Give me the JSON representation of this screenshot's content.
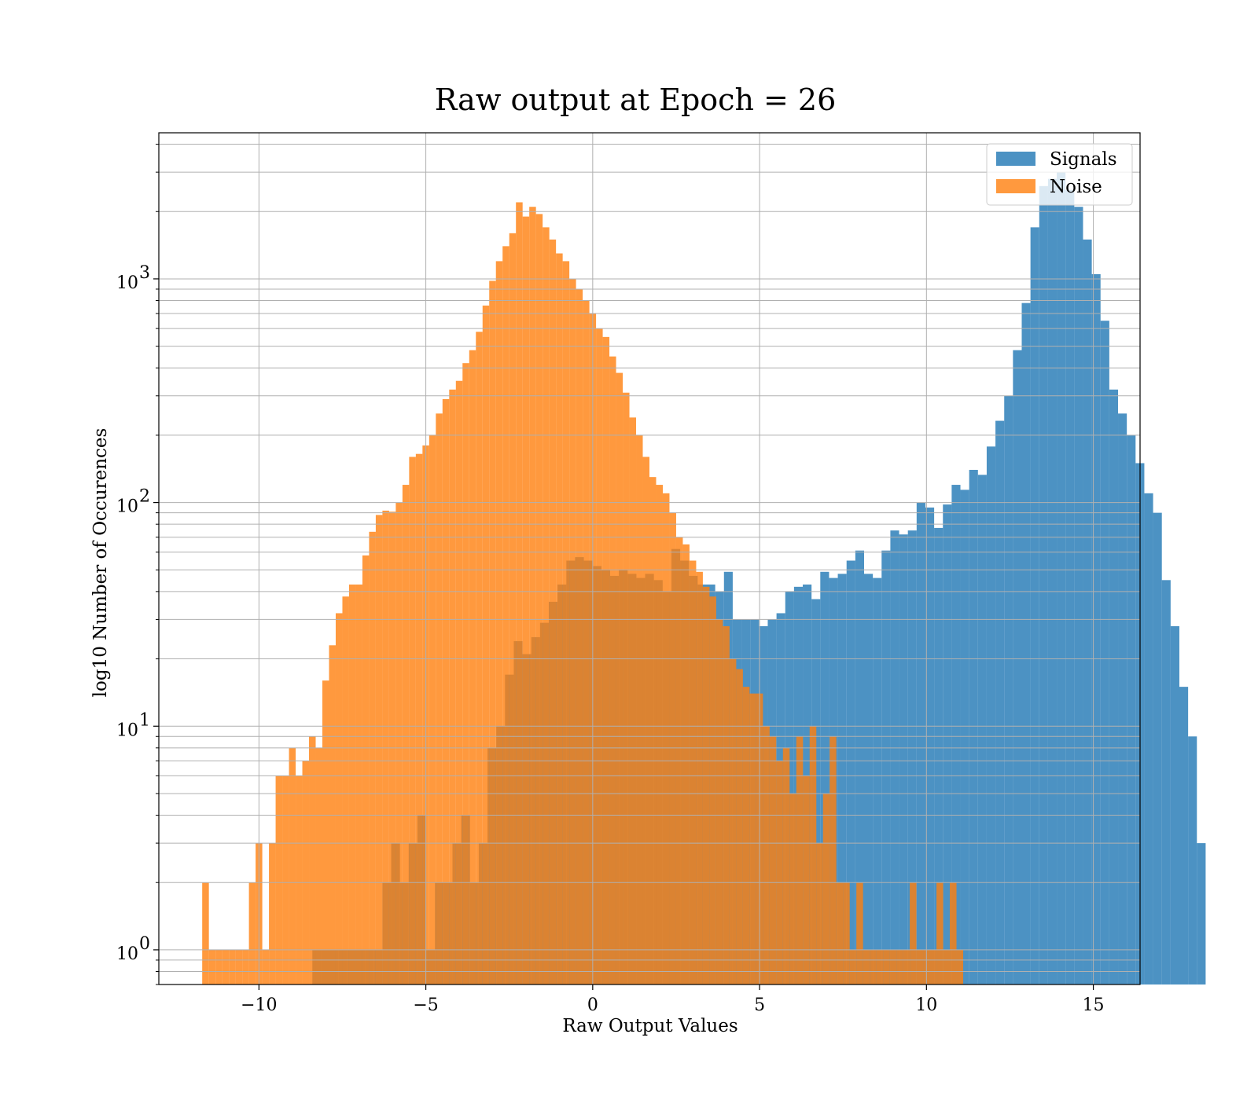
{
  "chart_data": {
    "type": "histogram",
    "title": "Raw output at Epoch = 26",
    "xlabel": "Raw Output Values",
    "ylabel": "log10 Number of Occurences",
    "xlim": [
      -13,
      16.4
    ],
    "ylim": [
      0.7,
      4500
    ],
    "yscale": "log",
    "grid": true,
    "legend_position": "top-right",
    "xticks": [
      -10,
      -5,
      0,
      5,
      10,
      15
    ],
    "xtick_labels": [
      "−10",
      "−5",
      "0",
      "5",
      "10",
      "15"
    ],
    "yticks": [
      1,
      10,
      100,
      1000
    ],
    "ytick_labels": [
      "10",
      "10",
      "10",
      "10"
    ],
    "ytick_exponents": [
      "0",
      "1",
      "2",
      "3"
    ],
    "series": [
      {
        "name": "Signals",
        "color": "#1f77b4",
        "opacity": 0.8,
        "bin_start": -8.4,
        "bin_width": 0.2624,
        "counts": [
          1,
          1,
          1,
          1,
          1,
          1,
          1,
          1,
          2,
          3,
          2,
          3,
          4,
          1,
          2,
          2,
          3,
          4,
          2,
          3,
          8,
          10,
          17,
          24,
          21,
          25,
          29,
          36,
          43,
          55,
          57,
          55,
          52,
          50,
          47,
          50,
          48,
          46,
          48,
          45,
          40,
          62,
          55,
          47,
          43,
          43,
          40,
          49,
          30,
          30,
          30,
          28,
          30,
          32,
          40,
          42,
          43,
          37,
          49,
          46,
          48,
          55,
          61,
          48,
          46,
          61,
          75,
          72,
          75,
          100,
          95,
          77,
          98,
          120,
          114,
          140,
          133,
          178,
          232,
          300,
          480,
          780,
          1700,
          2600,
          2800,
          3000,
          2500,
          2100,
          1500,
          1050,
          650,
          320,
          250,
          200,
          150,
          110,
          90,
          45,
          28,
          15,
          9,
          3
        ]
      },
      {
        "name": "Noise",
        "color": "#ff7f0e",
        "opacity": 0.8,
        "bin_start": -11.7,
        "bin_width": 0.2,
        "counts": [
          2,
          1,
          1,
          1,
          1,
          1,
          1,
          2,
          3,
          1,
          3,
          6,
          6,
          8,
          6,
          7,
          9,
          8,
          16,
          23,
          32,
          38,
          43,
          43,
          58,
          74,
          88,
          92,
          91,
          100,
          120,
          160,
          165,
          180,
          200,
          250,
          290,
          320,
          350,
          420,
          480,
          580,
          760,
          980,
          1200,
          1400,
          1600,
          2200,
          1900,
          2100,
          1950,
          1700,
          1500,
          1300,
          1200,
          1000,
          900,
          800,
          700,
          600,
          550,
          450,
          380,
          310,
          240,
          200,
          160,
          130,
          120,
          110,
          90,
          70,
          65,
          55,
          49,
          42,
          38,
          30,
          28,
          20,
          18,
          15,
          14,
          14,
          10,
          9,
          7,
          8,
          5,
          9,
          6,
          10,
          3,
          5,
          9,
          2,
          2,
          1,
          2,
          1,
          1,
          1,
          1,
          1,
          1,
          1,
          2,
          1,
          1,
          1,
          2,
          1,
          2,
          1
        ]
      }
    ]
  }
}
